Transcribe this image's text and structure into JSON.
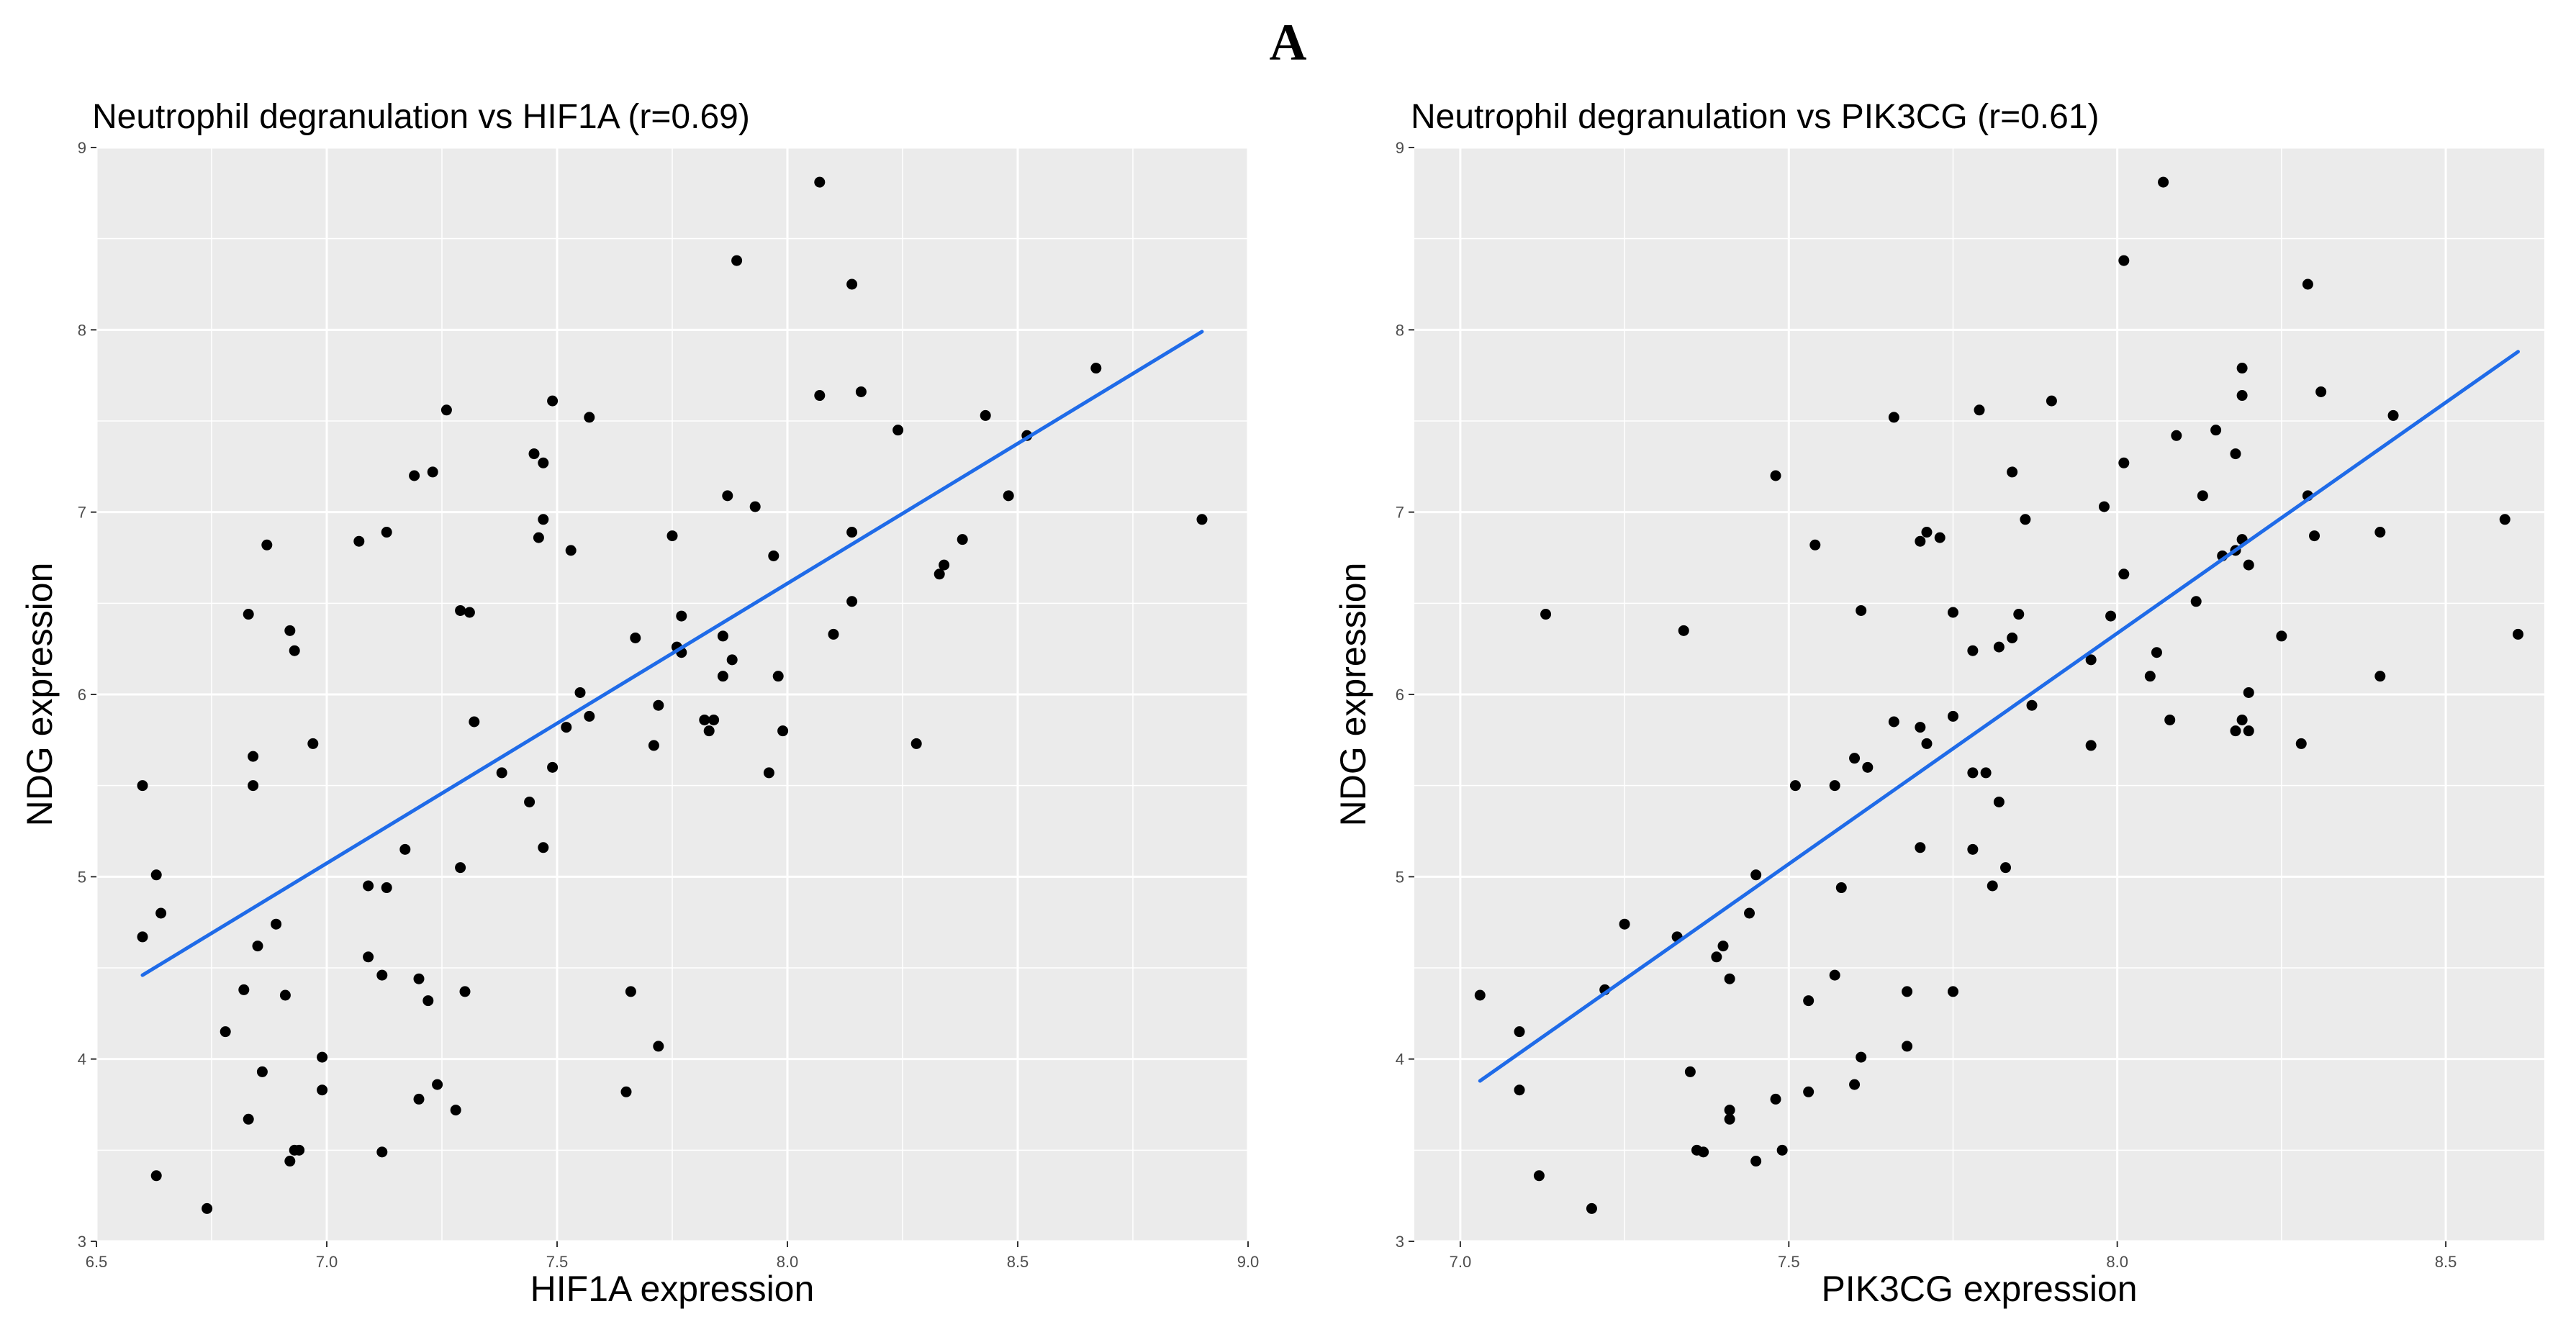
{
  "figure": {
    "panel_label": "A"
  },
  "colors": {
    "panel_bg": "#EBEBEB",
    "grid": "#FFFFFF",
    "point": "#000000",
    "fit_line": "#1F6BE8",
    "tick": "#4D4D4D"
  },
  "chart_data": [
    {
      "type": "scatter",
      "title": "Neutrophil degranulation vs HIF1A (r=0.69)",
      "xlabel": "HIF1A expression",
      "ylabel": "NDG expression",
      "xlim": [
        6.5,
        9.0
      ],
      "ylim": [
        3.0,
        9.0
      ],
      "x_ticks": [
        6.5,
        7.0,
        7.5,
        8.0,
        8.5,
        9.0
      ],
      "x_tick_labels": [
        "6.5",
        "7.0",
        "7.5",
        "8.0",
        "8.5",
        "9.0"
      ],
      "y_ticks": [
        3,
        4,
        5,
        6,
        7,
        8,
        9
      ],
      "y_tick_labels": [
        "3",
        "4",
        "5",
        "6",
        "7",
        "8",
        "9"
      ],
      "fit_line": {
        "x": [
          6.6,
          8.9
        ],
        "y": [
          4.46,
          7.99
        ]
      },
      "points": [
        [
          6.6,
          5.5
        ],
        [
          6.6,
          4.67
        ],
        [
          6.63,
          5.01
        ],
        [
          6.64,
          4.8
        ],
        [
          6.63,
          3.36
        ],
        [
          6.74,
          3.18
        ],
        [
          6.78,
          4.15
        ],
        [
          6.82,
          4.38
        ],
        [
          6.83,
          3.67
        ],
        [
          6.83,
          6.44
        ],
        [
          6.84,
          5.66
        ],
        [
          6.84,
          5.5
        ],
        [
          6.85,
          4.62
        ],
        [
          6.86,
          3.93
        ],
        [
          6.87,
          6.82
        ],
        [
          6.89,
          4.74
        ],
        [
          6.91,
          4.35
        ],
        [
          6.92,
          3.44
        ],
        [
          6.92,
          6.35
        ],
        [
          6.93,
          6.24
        ],
        [
          6.93,
          3.5
        ],
        [
          6.94,
          3.5
        ],
        [
          6.97,
          5.73
        ],
        [
          6.99,
          4.01
        ],
        [
          6.99,
          3.83
        ],
        [
          7.07,
          6.84
        ],
        [
          7.09,
          4.95
        ],
        [
          7.09,
          4.56
        ],
        [
          7.12,
          4.46
        ],
        [
          7.12,
          3.49
        ],
        [
          7.13,
          6.89
        ],
        [
          7.13,
          4.94
        ],
        [
          7.17,
          5.15
        ],
        [
          7.19,
          7.2
        ],
        [
          7.2,
          4.44
        ],
        [
          7.2,
          3.78
        ],
        [
          7.22,
          4.32
        ],
        [
          7.23,
          7.22
        ],
        [
          7.24,
          3.86
        ],
        [
          7.26,
          7.56
        ],
        [
          7.28,
          3.72
        ],
        [
          7.29,
          5.05
        ],
        [
          7.29,
          6.46
        ],
        [
          7.3,
          4.37
        ],
        [
          7.31,
          6.45
        ],
        [
          7.32,
          5.85
        ],
        [
          7.38,
          5.57
        ],
        [
          7.44,
          5.41
        ],
        [
          7.45,
          7.32
        ],
        [
          7.46,
          6.86
        ],
        [
          7.47,
          7.27
        ],
        [
          7.47,
          6.96
        ],
        [
          7.47,
          5.16
        ],
        [
          7.49,
          7.61
        ],
        [
          7.49,
          5.6
        ],
        [
          7.52,
          5.82
        ],
        [
          7.53,
          6.79
        ],
        [
          7.55,
          6.01
        ],
        [
          7.57,
          7.52
        ],
        [
          7.57,
          5.88
        ],
        [
          7.65,
          3.82
        ],
        [
          7.66,
          4.37
        ],
        [
          7.67,
          6.31
        ],
        [
          7.71,
          5.72
        ],
        [
          7.72,
          5.94
        ],
        [
          7.72,
          4.07
        ],
        [
          7.75,
          6.87
        ],
        [
          7.76,
          6.26
        ],
        [
          7.77,
          6.23
        ],
        [
          7.77,
          6.43
        ],
        [
          7.82,
          5.86
        ],
        [
          7.83,
          5.8
        ],
        [
          7.84,
          5.86
        ],
        [
          7.86,
          6.1
        ],
        [
          7.86,
          6.32
        ],
        [
          7.87,
          7.09
        ],
        [
          7.88,
          6.19
        ],
        [
          7.89,
          8.38
        ],
        [
          7.93,
          7.03
        ],
        [
          7.96,
          5.57
        ],
        [
          7.97,
          6.76
        ],
        [
          7.98,
          6.1
        ],
        [
          7.99,
          5.8
        ],
        [
          8.07,
          8.81
        ],
        [
          8.07,
          7.64
        ],
        [
          8.1,
          6.33
        ],
        [
          8.14,
          8.25
        ],
        [
          8.14,
          6.89
        ],
        [
          8.14,
          6.51
        ],
        [
          8.16,
          7.66
        ],
        [
          8.24,
          7.45
        ],
        [
          8.28,
          5.73
        ],
        [
          8.33,
          6.66
        ],
        [
          8.34,
          6.71
        ],
        [
          8.38,
          6.85
        ],
        [
          8.43,
          7.53
        ],
        [
          8.48,
          7.09
        ],
        [
          8.52,
          7.42
        ],
        [
          8.67,
          7.79
        ],
        [
          8.9,
          6.96
        ]
      ]
    },
    {
      "type": "scatter",
      "title": "Neutrophil degranulation vs PIK3CG (r=0.61)",
      "xlabel": "PIK3CG expression",
      "ylabel": "NDG expression",
      "xlim": [
        6.93,
        8.65
      ],
      "ylim": [
        3.0,
        9.0
      ],
      "x_ticks": [
        7.0,
        7.5,
        8.0,
        8.5
      ],
      "x_tick_labels": [
        "7.0",
        "7.5",
        "8.0",
        "8.5"
      ],
      "y_ticks": [
        3,
        4,
        5,
        6,
        7,
        8,
        9
      ],
      "y_tick_labels": [
        "3",
        "4",
        "5",
        "6",
        "7",
        "8",
        "9"
      ],
      "fit_line": {
        "x": [
          7.03,
          8.61
        ],
        "y": [
          3.88,
          7.88
        ]
      },
      "points": [
        [
          7.03,
          4.35
        ],
        [
          7.09,
          4.15
        ],
        [
          7.09,
          3.83
        ],
        [
          7.12,
          3.36
        ],
        [
          7.13,
          6.44
        ],
        [
          7.2,
          3.18
        ],
        [
          7.22,
          4.38
        ],
        [
          7.25,
          4.74
        ],
        [
          7.33,
          4.67
        ],
        [
          7.34,
          6.35
        ],
        [
          7.35,
          3.93
        ],
        [
          7.36,
          3.5
        ],
        [
          7.37,
          3.49
        ],
        [
          7.39,
          4.56
        ],
        [
          7.4,
          4.62
        ],
        [
          7.41,
          4.44
        ],
        [
          7.41,
          3.72
        ],
        [
          7.41,
          3.67
        ],
        [
          7.44,
          4.8
        ],
        [
          7.45,
          5.01
        ],
        [
          7.45,
          3.44
        ],
        [
          7.48,
          7.2
        ],
        [
          7.48,
          3.78
        ],
        [
          7.49,
          3.5
        ],
        [
          7.51,
          5.5
        ],
        [
          7.53,
          4.32
        ],
        [
          7.53,
          3.82
        ],
        [
          7.54,
          6.82
        ],
        [
          7.57,
          5.5
        ],
        [
          7.57,
          4.46
        ],
        [
          7.58,
          4.94
        ],
        [
          7.6,
          5.65
        ],
        [
          7.6,
          3.86
        ],
        [
          7.61,
          6.46
        ],
        [
          7.61,
          4.01
        ],
        [
          7.62,
          5.6
        ],
        [
          7.66,
          7.52
        ],
        [
          7.66,
          5.85
        ],
        [
          7.68,
          4.37
        ],
        [
          7.68,
          4.07
        ],
        [
          7.7,
          6.84
        ],
        [
          7.7,
          5.82
        ],
        [
          7.7,
          5.16
        ],
        [
          7.71,
          6.89
        ],
        [
          7.71,
          5.73
        ],
        [
          7.73,
          6.86
        ],
        [
          7.75,
          6.45
        ],
        [
          7.75,
          5.88
        ],
        [
          7.75,
          4.37
        ],
        [
          7.78,
          6.24
        ],
        [
          7.78,
          5.57
        ],
        [
          7.78,
          5.15
        ],
        [
          7.79,
          7.56
        ],
        [
          7.8,
          5.57
        ],
        [
          7.81,
          4.95
        ],
        [
          7.82,
          6.26
        ],
        [
          7.82,
          5.41
        ],
        [
          7.83,
          5.05
        ],
        [
          7.84,
          7.22
        ],
        [
          7.84,
          6.31
        ],
        [
          7.85,
          6.44
        ],
        [
          7.86,
          6.96
        ],
        [
          7.87,
          5.94
        ],
        [
          7.9,
          7.61
        ],
        [
          7.96,
          6.19
        ],
        [
          7.96,
          5.72
        ],
        [
          7.98,
          7.03
        ],
        [
          7.99,
          6.43
        ],
        [
          8.01,
          8.38
        ],
        [
          8.01,
          7.27
        ],
        [
          8.01,
          6.66
        ],
        [
          8.05,
          6.1
        ],
        [
          8.06,
          6.23
        ],
        [
          8.07,
          8.81
        ],
        [
          8.08,
          5.86
        ],
        [
          8.09,
          7.42
        ],
        [
          8.12,
          6.51
        ],
        [
          8.13,
          7.09
        ],
        [
          8.15,
          7.45
        ],
        [
          8.16,
          6.76
        ],
        [
          8.18,
          7.32
        ],
        [
          8.18,
          6.79
        ],
        [
          8.18,
          5.8
        ],
        [
          8.19,
          7.79
        ],
        [
          8.19,
          7.64
        ],
        [
          8.19,
          6.85
        ],
        [
          8.19,
          5.86
        ],
        [
          8.2,
          6.71
        ],
        [
          8.2,
          6.01
        ],
        [
          8.2,
          5.8
        ],
        [
          8.25,
          6.32
        ],
        [
          8.28,
          5.73
        ],
        [
          8.29,
          8.25
        ],
        [
          8.29,
          7.09
        ],
        [
          8.3,
          6.87
        ],
        [
          8.31,
          7.66
        ],
        [
          8.4,
          6.89
        ],
        [
          8.4,
          6.1
        ],
        [
          8.42,
          7.53
        ],
        [
          8.59,
          6.96
        ],
        [
          8.61,
          6.33
        ]
      ]
    }
  ]
}
